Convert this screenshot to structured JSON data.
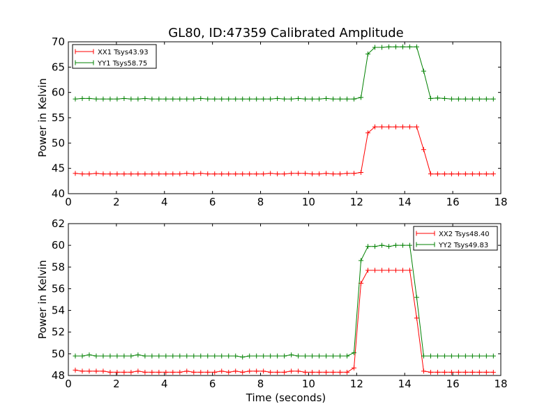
{
  "chart_data": [
    {
      "type": "line",
      "title": "GL80, ID:47359 Calibrated Amplitude",
      "xlabel": "",
      "ylabel": "Power in Kelvin",
      "xlim": [
        0,
        18
      ],
      "ylim": [
        40,
        70
      ],
      "xticks": [
        "0",
        "2",
        "4",
        "6",
        "8",
        "10",
        "12",
        "14",
        "16",
        "18"
      ],
      "yticks": [
        "40",
        "45",
        "50",
        "55",
        "60",
        "65",
        "70"
      ],
      "legend_position": "upper-left",
      "x": [
        0.29,
        0.58,
        0.87,
        1.16,
        1.45,
        1.74,
        2.03,
        2.32,
        2.61,
        2.9,
        3.19,
        3.48,
        3.77,
        4.06,
        4.35,
        4.64,
        4.93,
        5.22,
        5.51,
        5.8,
        6.09,
        6.38,
        6.67,
        6.96,
        7.25,
        7.54,
        7.83,
        8.12,
        8.41,
        8.7,
        8.99,
        9.28,
        9.57,
        9.86,
        10.15,
        10.44,
        10.73,
        11.02,
        11.31,
        11.6,
        11.89,
        12.18,
        12.47,
        12.76,
        13.05,
        13.34,
        13.63,
        13.92,
        14.21,
        14.5,
        14.79,
        15.08,
        15.37,
        15.66,
        15.95,
        16.24,
        16.53,
        16.82,
        17.11,
        17.4,
        17.69
      ],
      "series": [
        {
          "name": "XX1 Tsys43.93",
          "color": "#ff0000",
          "values": [
            44.0,
            43.9,
            43.9,
            44.0,
            43.9,
            43.9,
            43.9,
            43.9,
            43.9,
            43.9,
            43.9,
            43.9,
            43.9,
            43.9,
            43.9,
            43.9,
            44.0,
            43.9,
            44.0,
            43.9,
            43.9,
            43.9,
            43.9,
            43.9,
            43.9,
            43.9,
            43.9,
            43.9,
            44.0,
            43.9,
            43.9,
            44.0,
            44.0,
            44.0,
            43.9,
            43.9,
            44.0,
            43.9,
            43.9,
            44.0,
            44.0,
            44.2,
            52.0,
            53.2,
            53.2,
            53.2,
            53.2,
            53.2,
            53.2,
            53.2,
            48.7,
            43.9,
            43.9,
            43.9,
            43.9,
            43.9,
            43.9,
            43.9,
            43.9,
            43.9,
            43.9
          ]
        },
        {
          "name": "YY1 Tsys58.75",
          "color": "#008000",
          "values": [
            58.7,
            58.8,
            58.8,
            58.7,
            58.7,
            58.7,
            58.7,
            58.8,
            58.7,
            58.7,
            58.8,
            58.7,
            58.7,
            58.7,
            58.7,
            58.7,
            58.7,
            58.7,
            58.8,
            58.7,
            58.7,
            58.7,
            58.7,
            58.7,
            58.7,
            58.7,
            58.7,
            58.7,
            58.7,
            58.8,
            58.7,
            58.7,
            58.8,
            58.7,
            58.7,
            58.7,
            58.8,
            58.7,
            58.7,
            58.7,
            58.7,
            59.0,
            67.6,
            68.9,
            68.9,
            69.0,
            69.0,
            69.0,
            69.0,
            69.0,
            64.2,
            58.8,
            58.9,
            58.8,
            58.7,
            58.7,
            58.7,
            58.7,
            58.7,
            58.7,
            58.7
          ]
        }
      ]
    },
    {
      "type": "line",
      "title": "",
      "xlabel": "Time (seconds)",
      "ylabel": "Power in Kelvin",
      "xlim": [
        0,
        18
      ],
      "ylim": [
        48,
        62
      ],
      "xticks": [
        "0",
        "2",
        "4",
        "6",
        "8",
        "10",
        "12",
        "14",
        "16",
        "18"
      ],
      "yticks": [
        "48",
        "50",
        "52",
        "54",
        "56",
        "58",
        "60",
        "62"
      ],
      "legend_position": "upper-right",
      "x": [
        0.29,
        0.58,
        0.87,
        1.16,
        1.45,
        1.74,
        2.03,
        2.32,
        2.61,
        2.9,
        3.19,
        3.48,
        3.77,
        4.06,
        4.35,
        4.64,
        4.93,
        5.22,
        5.51,
        5.8,
        6.09,
        6.38,
        6.67,
        6.96,
        7.25,
        7.54,
        7.83,
        8.12,
        8.41,
        8.7,
        8.99,
        9.28,
        9.57,
        9.86,
        10.15,
        10.44,
        10.73,
        11.02,
        11.31,
        11.6,
        11.89,
        12.18,
        12.47,
        12.76,
        13.05,
        13.34,
        13.63,
        13.92,
        14.21,
        14.5,
        14.79,
        15.08,
        15.37,
        15.66,
        15.95,
        16.24,
        16.53,
        16.82,
        17.11,
        17.4,
        17.69
      ],
      "series": [
        {
          "name": "XX2 Tsys48.40",
          "color": "#ff0000",
          "values": [
            48.5,
            48.4,
            48.4,
            48.4,
            48.4,
            48.3,
            48.3,
            48.3,
            48.3,
            48.4,
            48.3,
            48.3,
            48.3,
            48.3,
            48.3,
            48.3,
            48.4,
            48.3,
            48.3,
            48.3,
            48.3,
            48.4,
            48.3,
            48.4,
            48.3,
            48.4,
            48.4,
            48.4,
            48.3,
            48.3,
            48.3,
            48.4,
            48.4,
            48.3,
            48.3,
            48.3,
            48.3,
            48.3,
            48.3,
            48.3,
            48.7,
            56.5,
            57.7,
            57.7,
            57.7,
            57.7,
            57.7,
            57.7,
            57.7,
            53.3,
            48.4,
            48.3,
            48.3,
            48.3,
            48.3,
            48.3,
            48.3,
            48.3,
            48.3,
            48.3,
            48.3
          ]
        },
        {
          "name": "YY2 Tsys49.83",
          "color": "#008000",
          "values": [
            49.8,
            49.8,
            49.9,
            49.8,
            49.8,
            49.8,
            49.8,
            49.8,
            49.8,
            49.9,
            49.8,
            49.8,
            49.8,
            49.8,
            49.8,
            49.8,
            49.8,
            49.8,
            49.8,
            49.8,
            49.8,
            49.8,
            49.8,
            49.8,
            49.7,
            49.8,
            49.8,
            49.8,
            49.8,
            49.8,
            49.8,
            49.9,
            49.8,
            49.8,
            49.8,
            49.8,
            49.8,
            49.8,
            49.8,
            49.8,
            50.1,
            58.6,
            59.9,
            59.9,
            60.0,
            59.9,
            60.0,
            60.0,
            60.0,
            55.2,
            49.8,
            49.8,
            49.8,
            49.8,
            49.8,
            49.8,
            49.8,
            49.8,
            49.8,
            49.8,
            49.8
          ]
        }
      ]
    }
  ]
}
